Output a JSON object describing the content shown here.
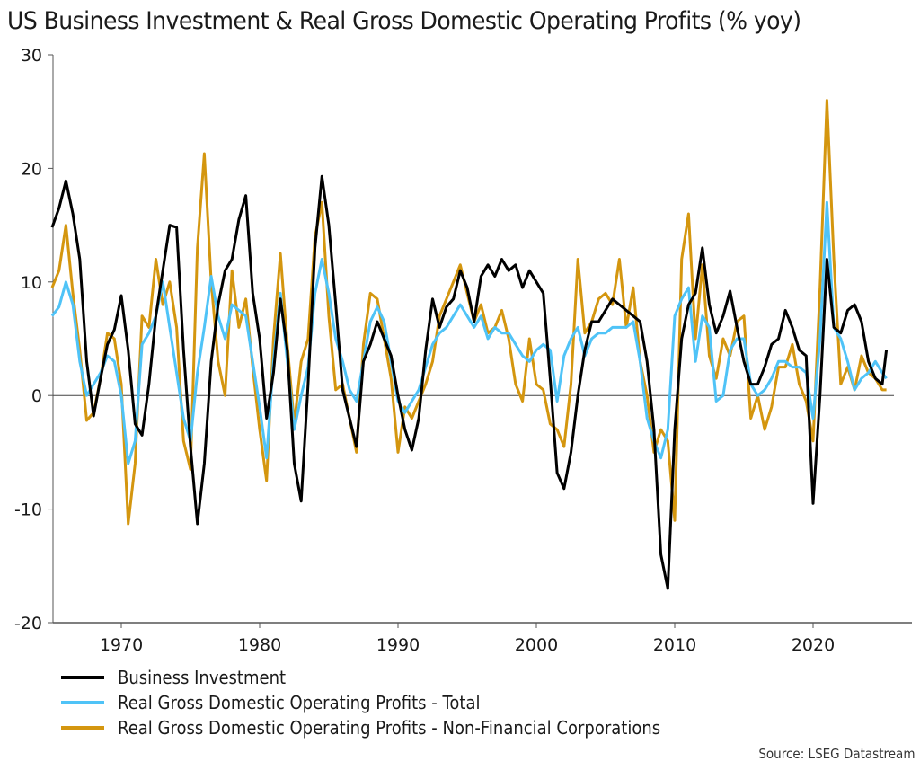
{
  "chart_data": {
    "type": "line",
    "title": "US Business Investment & Real Gross Domestic Operating Profits (% yoy)",
    "xlabel": "",
    "ylabel": "",
    "xlim": [
      1965,
      2027
    ],
    "ylim": [
      -20,
      30
    ],
    "yticks": [
      30,
      20,
      10,
      0,
      -10,
      -20
    ],
    "xticks": [
      1970,
      1980,
      1990,
      2000,
      2010,
      2020
    ],
    "grid": false,
    "zero_line": true,
    "legend_position": "bottom",
    "source": "Source: LSEG Datastream",
    "x": [
      1965.0,
      1965.5,
      1966.0,
      1966.5,
      1967.0,
      1967.5,
      1968.0,
      1968.5,
      1969.0,
      1969.5,
      1970.0,
      1970.5,
      1971.0,
      1971.5,
      1972.0,
      1972.5,
      1973.0,
      1973.5,
      1974.0,
      1974.5,
      1975.0,
      1975.5,
      1976.0,
      1976.5,
      1977.0,
      1977.5,
      1978.0,
      1978.5,
      1979.0,
      1979.5,
      1980.0,
      1980.5,
      1981.0,
      1981.5,
      1982.0,
      1982.5,
      1983.0,
      1983.5,
      1984.0,
      1984.5,
      1985.0,
      1985.5,
      1986.0,
      1986.5,
      1987.0,
      1987.5,
      1988.0,
      1988.5,
      1989.0,
      1989.5,
      1990.0,
      1990.5,
      1991.0,
      1991.5,
      1992.0,
      1992.5,
      1993.0,
      1993.5,
      1994.0,
      1994.5,
      1995.0,
      1995.5,
      1996.0,
      1996.5,
      1997.0,
      1997.5,
      1998.0,
      1998.5,
      1999.0,
      1999.5,
      2000.0,
      2000.5,
      2001.0,
      2001.5,
      2002.0,
      2002.5,
      2003.0,
      2003.5,
      2004.0,
      2004.5,
      2005.0,
      2005.5,
      2006.0,
      2006.5,
      2007.0,
      2007.5,
      2008.0,
      2008.5,
      2009.0,
      2009.5,
      2010.0,
      2010.5,
      2011.0,
      2011.5,
      2012.0,
      2012.5,
      2013.0,
      2013.5,
      2014.0,
      2014.5,
      2015.0,
      2015.5,
      2016.0,
      2016.5,
      2017.0,
      2017.5,
      2018.0,
      2018.5,
      2019.0,
      2019.5,
      2020.0,
      2020.5,
      2021.0,
      2021.5,
      2022.0,
      2022.5,
      2023.0,
      2023.5,
      2024.0,
      2024.5,
      2025.0,
      2025.3
    ],
    "series": [
      {
        "name": "Business Investment",
        "color": "#000000",
        "values": [
          14.8,
          16.5,
          18.9,
          16.0,
          12.0,
          3.0,
          -1.8,
          1.5,
          4.5,
          5.8,
          8.8,
          4.0,
          -2.5,
          -3.5,
          1.0,
          7.0,
          11.0,
          15.0,
          14.8,
          4.0,
          -4.5,
          -11.3,
          -6.0,
          3.0,
          8.0,
          11.0,
          12.0,
          15.5,
          17.6,
          9.0,
          5.0,
          -2.0,
          2.0,
          8.5,
          4.0,
          -6.0,
          -9.3,
          1.0,
          13.0,
          19.3,
          15.0,
          8.0,
          0.5,
          -2.0,
          -4.5,
          3.0,
          4.5,
          6.5,
          5.0,
          3.5,
          0.0,
          -3.0,
          -4.8,
          -2.0,
          4.0,
          8.5,
          6.0,
          7.8,
          8.5,
          11.0,
          9.5,
          6.5,
          10.5,
          11.5,
          10.5,
          12.0,
          11.0,
          11.5,
          9.5,
          11.0,
          10.0,
          9.0,
          1.5,
          -6.8,
          -8.2,
          -5.0,
          0.0,
          4.0,
          6.5,
          6.5,
          7.5,
          8.5,
          8.0,
          7.5,
          7.0,
          6.5,
          3.0,
          -3.0,
          -14.0,
          -17.0,
          -3.0,
          5.0,
          8.0,
          9.0,
          13.0,
          8.0,
          5.5,
          7.0,
          9.2,
          6.0,
          3.0,
          1.0,
          1.0,
          2.5,
          4.5,
          5.0,
          7.5,
          6.0,
          4.0,
          3.5,
          -9.5,
          0.0,
          12.0,
          6.0,
          5.5,
          7.5,
          8.0,
          6.5,
          3.0,
          1.5,
          1.0,
          4.0
        ]
      },
      {
        "name": "Real Gross Domestic Operating Profits - Total",
        "color": "#4fc3f7",
        "values": [
          7.0,
          7.8,
          10.0,
          8.0,
          3.0,
          0.0,
          1.0,
          2.0,
          3.5,
          3.0,
          0.0,
          -6.0,
          -4.0,
          4.5,
          5.5,
          7.0,
          10.0,
          6.0,
          2.0,
          -2.0,
          -4.0,
          2.0,
          6.0,
          10.5,
          7.0,
          5.0,
          8.0,
          7.5,
          7.0,
          3.0,
          -1.0,
          -5.5,
          3.0,
          9.0,
          3.0,
          -3.0,
          0.0,
          2.5,
          9.0,
          12.0,
          9.0,
          5.0,
          3.0,
          0.5,
          -0.5,
          3.0,
          6.5,
          7.8,
          6.5,
          3.0,
          -0.5,
          -1.5,
          -0.5,
          0.5,
          2.5,
          4.5,
          5.5,
          6.0,
          7.0,
          8.0,
          7.0,
          6.0,
          7.0,
          5.0,
          6.0,
          5.5,
          5.5,
          4.5,
          3.5,
          3.0,
          4.0,
          4.5,
          4.0,
          -0.5,
          3.5,
          5.0,
          6.0,
          3.5,
          5.0,
          5.5,
          5.5,
          6.0,
          6.0,
          6.0,
          6.5,
          3.0,
          -2.0,
          -4.0,
          -5.5,
          -3.0,
          7.0,
          8.5,
          9.5,
          3.0,
          7.0,
          6.0,
          -0.5,
          0.0,
          4.0,
          5.0,
          5.0,
          1.0,
          0.0,
          0.5,
          1.5,
          3.0,
          3.0,
          2.5,
          2.5,
          2.0,
          -2.0,
          5.0,
          17.0,
          6.0,
          5.0,
          3.0,
          0.5,
          1.5,
          2.0,
          3.0,
          2.0,
          1.5
        ]
      },
      {
        "name": "Real Gross Domestic Operating Profits - Non-Financial Corporations",
        "color": "#d4960f",
        "values": [
          9.5,
          11.0,
          15.0,
          9.0,
          4.0,
          -2.2,
          -1.5,
          1.5,
          5.5,
          5.0,
          1.0,
          -11.3,
          -6.0,
          7.0,
          6.0,
          12.0,
          8.0,
          10.0,
          6.0,
          -4.0,
          -6.5,
          13.0,
          21.3,
          10.0,
          3.0,
          0.0,
          11.0,
          6.0,
          8.5,
          2.5,
          -3.0,
          -7.5,
          5.0,
          12.5,
          4.5,
          -2.5,
          3.0,
          5.0,
          14.0,
          17.0,
          7.0,
          0.5,
          1.0,
          -2.0,
          -5.0,
          4.5,
          9.0,
          8.5,
          5.0,
          1.5,
          -5.0,
          -1.0,
          -2.0,
          -0.5,
          1.0,
          3.0,
          7.0,
          8.5,
          10.0,
          11.5,
          9.0,
          6.5,
          8.0,
          5.5,
          6.0,
          7.5,
          5.0,
          1.0,
          -0.5,
          5.0,
          1.0,
          0.5,
          -2.5,
          -3.0,
          -4.5,
          1.0,
          12.0,
          5.5,
          6.5,
          8.5,
          9.0,
          8.0,
          12.0,
          6.0,
          9.5,
          3.0,
          0.0,
          -5.0,
          -3.0,
          -4.0,
          -11.0,
          12.0,
          16.0,
          5.0,
          11.5,
          3.5,
          1.5,
          5.0,
          3.5,
          6.5,
          7.0,
          -2.0,
          0.0,
          -3.0,
          -1.0,
          2.5,
          2.5,
          4.5,
          1.0,
          -0.5,
          -4.0,
          9.5,
          26.0,
          12.0,
          1.0,
          2.5,
          0.5,
          3.5,
          2.0,
          1.5,
          0.5,
          0.5
        ]
      }
    ]
  },
  "title": "US Business Investment & Real Gross Domestic Operating Profits (% yoy)",
  "legend": [
    {
      "label": "Business Investment",
      "color": "#000000"
    },
    {
      "label": "Real Gross Domestic Operating Profits - Total",
      "color": "#4fc3f7"
    },
    {
      "label": "Real Gross Domestic Operating Profits - Non-Financial Corporations",
      "color": "#d4960f"
    }
  ],
  "source": "Source: LSEG Datastream"
}
